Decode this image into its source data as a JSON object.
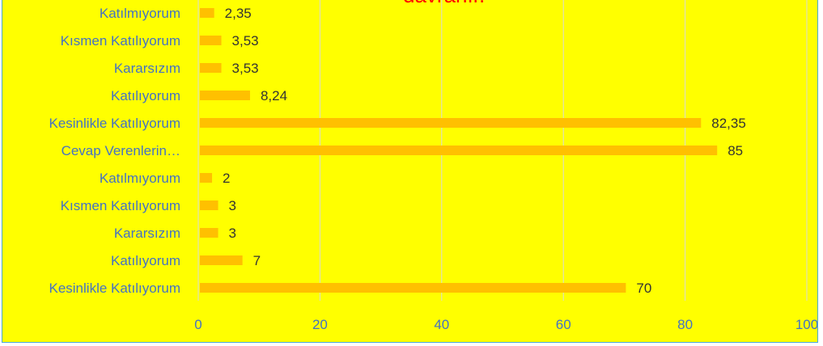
{
  "chart_data": {
    "type": "bar",
    "orientation": "horizontal",
    "title": "davranır.",
    "categories": [
      "Katılmıyorum",
      "Kısmen Katılıyorum",
      "Kararsızım",
      "Katılıyorum",
      "Kesinlikle Katılıyorum",
      "Cevap Verenlerin…",
      "Katılmıyorum",
      "Kısmen Katılıyorum",
      "Kararsızım",
      "Katılıyorum",
      "Kesinlikle Katılıyorum"
    ],
    "values": [
      2.35,
      3.53,
      3.53,
      8.24,
      82.35,
      85,
      2,
      3,
      3,
      7,
      70
    ],
    "data_labels": [
      "2,35",
      "3,53",
      "3,53",
      "8,24",
      "82,35",
      "85",
      "2",
      "3",
      "3",
      "7",
      "70"
    ],
    "xlim": [
      0,
      100
    ],
    "x_ticks": [
      0,
      20,
      40,
      60,
      80,
      100
    ],
    "grid": true,
    "legend": "none"
  },
  "colors": {
    "background": "#ffff00",
    "bar": "#ffc000",
    "grid": "#d9d9d9",
    "title": "#ff0000",
    "axis_text": "#4472c4",
    "data_label": "#333333"
  }
}
